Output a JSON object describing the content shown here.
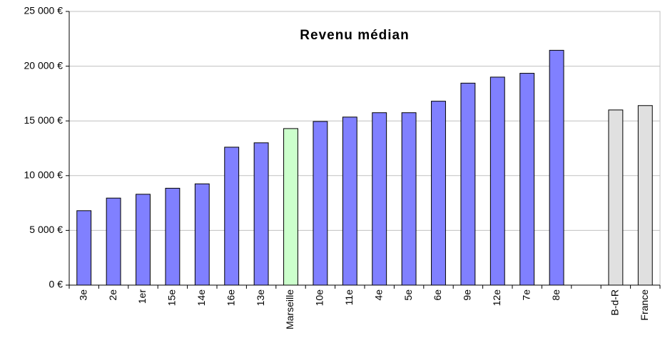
{
  "chart_data": {
    "type": "bar",
    "title": "Revenu médian",
    "categories": [
      "3e",
      "2e",
      "1er",
      "15e",
      "14e",
      "16e",
      "13e",
      "Marseille",
      "10e",
      "11e",
      "4e",
      "5e",
      "6e",
      "9e",
      "12e",
      "7e",
      "8e",
      null,
      "B-d-R",
      "France"
    ],
    "values": [
      6800,
      7950,
      8300,
      8850,
      9250,
      12600,
      13000,
      14300,
      14950,
      15350,
      15750,
      15750,
      16800,
      18450,
      19000,
      19350,
      21450,
      null,
      16000,
      16400
    ],
    "colors": [
      "#8080ff",
      "#8080ff",
      "#8080ff",
      "#8080ff",
      "#8080ff",
      "#8080ff",
      "#8080ff",
      "#ccffcc",
      "#8080ff",
      "#8080ff",
      "#8080ff",
      "#8080ff",
      "#8080ff",
      "#8080ff",
      "#8080ff",
      "#8080ff",
      "#8080ff",
      null,
      "#e0e0e0",
      "#e0e0e0"
    ],
    "ylim": [
      0,
      25000
    ],
    "yticks": [
      {
        "value": 0,
        "label": "0 €"
      },
      {
        "value": 5000,
        "label": "5 000 €"
      },
      {
        "value": 10000,
        "label": "10 000 €"
      },
      {
        "value": 15000,
        "label": "15 000 €"
      },
      {
        "value": 20000,
        "label": "20 000 €"
      },
      {
        "value": 25000,
        "label": "25 000 €"
      }
    ],
    "grid": true
  }
}
